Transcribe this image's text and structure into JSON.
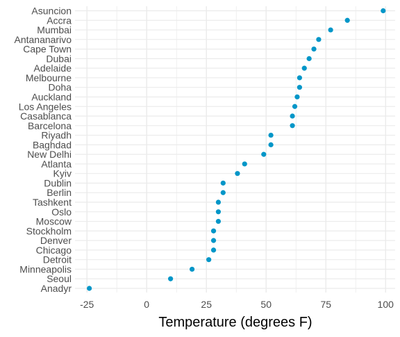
{
  "chart_data": {
    "type": "scatter",
    "xlabel": "Temperature (degrees F)",
    "ylabel": "",
    "title": "",
    "xlim": [
      -30,
      104
    ],
    "xticks": [
      -25,
      0,
      25,
      50,
      75,
      100
    ],
    "x_tick_labels": [
      "-25",
      "0",
      "25",
      "50",
      "75",
      "100"
    ],
    "grid": true,
    "legend": "none",
    "categories": [
      "Asuncion",
      "Accra",
      "Mumbai",
      "Antananarivo",
      "Cape Town",
      "Dubai",
      "Adelaide",
      "Melbourne",
      "Doha",
      "Auckland",
      "Los Angeles",
      "Casablanca",
      "Barcelona",
      "Riyadh",
      "Baghdad",
      "New Delhi",
      "Atlanta",
      "Kyiv",
      "Dublin",
      "Berlin",
      "Tashkent",
      "Oslo",
      "Moscow",
      "Stockholm",
      "Denver",
      "Chicago",
      "Detroit",
      "Minneapolis",
      "Seoul",
      "Anadyr"
    ],
    "values": [
      99,
      84,
      77,
      72,
      70,
      68,
      66,
      64,
      64,
      63,
      62,
      61,
      61,
      52,
      52,
      49,
      41,
      38,
      32,
      32,
      30,
      30,
      30,
      28,
      28,
      28,
      26,
      19,
      10,
      -24
    ],
    "point_color": "#0096c8",
    "grid_color": "#ebebeb",
    "text_color": "#4d4d4d"
  }
}
